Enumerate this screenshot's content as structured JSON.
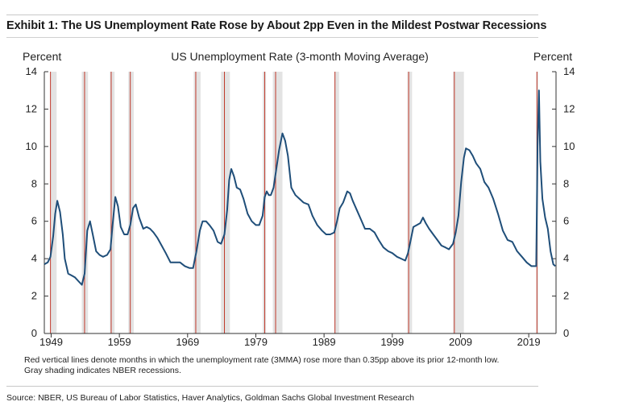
{
  "exhibit_title": "Exhibit 1: The US Unemployment Rate Rose by About 2pp Even in the Mildest Postwar Recessions",
  "source": "Source: NBER, US Bureau of Labor Statistics, Haver Analytics, Goldman Sachs Global Investment Research",
  "colors": {
    "line": "#1f4e79",
    "red_line": "#c0392b",
    "recession_shade": "#e3e3e3"
  },
  "chart_data": {
    "type": "line",
    "title": "US Unemployment Rate (3-month Moving Average)",
    "ylabel_left": "Percent",
    "ylabel_right": "Percent",
    "xlim": [
      1948.0,
      2023.0
    ],
    "ylim": [
      0,
      14
    ],
    "yticks": [
      "0",
      "2",
      "4",
      "6",
      "8",
      "10",
      "12",
      "14"
    ],
    "xticks": [
      {
        "x": 1949,
        "label": "1949"
      },
      {
        "x": 1959,
        "label": "1959"
      },
      {
        "x": 1969,
        "label": "1969"
      },
      {
        "x": 1979,
        "label": "1979"
      },
      {
        "x": 1989,
        "label": "1989"
      },
      {
        "x": 1999,
        "label": "1999"
      },
      {
        "x": 2009,
        "label": "2009"
      },
      {
        "x": 2019,
        "label": "2019"
      }
    ],
    "notes": [
      "Red vertical lines denote months in which the unemployment rate (3MMA) rose more than 0.35pp above its prior 12-month low.",
      "Gray shading indicates NBER recessions."
    ],
    "recessions": [
      [
        1948.9,
        1949.8
      ],
      [
        1953.5,
        1954.4
      ],
      [
        1957.6,
        1958.3
      ],
      [
        1960.3,
        1961.1
      ],
      [
        1969.9,
        1970.9
      ],
      [
        1973.9,
        1975.2
      ],
      [
        1980.0,
        1980.5
      ],
      [
        1981.5,
        1982.9
      ],
      [
        1990.5,
        1991.2
      ],
      [
        2001.2,
        2001.9
      ],
      [
        2007.9,
        2009.5
      ],
      [
        2020.1,
        2020.4
      ]
    ],
    "red_lines": [
      1948.9,
      1953.9,
      1957.8,
      1960.6,
      1970.2,
      1974.4,
      1980.3,
      1981.9,
      1990.6,
      2001.4,
      2008.1,
      2020.2
    ],
    "series": [
      {
        "x": [
          1948.0,
          1948.5,
          1948.9,
          1949.3,
          1949.6,
          1949.9,
          1950.3,
          1950.7,
          1951.0,
          1951.5,
          1952.0,
          1952.5,
          1953.0,
          1953.5,
          1953.9,
          1954.3,
          1954.7,
          1955.1,
          1955.6,
          1956.1,
          1956.6,
          1957.2,
          1957.7,
          1958.0,
          1958.4,
          1958.8,
          1959.2,
          1959.7,
          1960.2,
          1960.6,
          1961.0,
          1961.4,
          1961.9,
          1962.5,
          1963.0,
          1963.5,
          1964.0,
          1964.6,
          1965.2,
          1965.8,
          1966.5,
          1967.2,
          1967.9,
          1968.6,
          1969.3,
          1969.8,
          1970.3,
          1970.8,
          1971.2,
          1971.7,
          1972.2,
          1972.8,
          1973.4,
          1973.9,
          1974.4,
          1974.8,
          1975.1,
          1975.4,
          1975.8,
          1976.2,
          1976.7,
          1977.2,
          1977.8,
          1978.4,
          1979.0,
          1979.5,
          1980.0,
          1980.3,
          1980.6,
          1980.9,
          1981.2,
          1981.6,
          1982.0,
          1982.4,
          1982.9,
          1983.3,
          1983.7,
          1984.2,
          1984.8,
          1985.4,
          1986.0,
          1986.7,
          1987.3,
          1988.0,
          1988.7,
          1989.3,
          1989.9,
          1990.5,
          1990.9,
          1991.3,
          1991.8,
          1992.4,
          1992.8,
          1993.2,
          1993.8,
          1994.4,
          1995.0,
          1995.7,
          1996.4,
          1997.0,
          1997.7,
          1998.4,
          1999.0,
          1999.7,
          2000.3,
          2000.9,
          2001.3,
          2001.7,
          2002.1,
          2002.6,
          2003.1,
          2003.5,
          2003.9,
          2004.4,
          2005.0,
          2005.6,
          2006.2,
          2006.8,
          2007.3,
          2007.9,
          2008.3,
          2008.7,
          2009.1,
          2009.5,
          2009.8,
          2010.3,
          2010.8,
          2011.3,
          2011.9,
          2012.5,
          2013.1,
          2013.8,
          2014.5,
          2015.2,
          2015.9,
          2016.6,
          2017.3,
          2018.0,
          2018.7,
          2019.4,
          2019.9,
          2020.1,
          2020.3,
          2020.5,
          2020.7,
          2021.0,
          2021.4,
          2021.8,
          2022.2,
          2022.6,
          2022.9
        ],
        "values": [
          3.7,
          3.8,
          4.1,
          5.2,
          6.4,
          7.1,
          6.5,
          5.3,
          4.0,
          3.2,
          3.1,
          3.0,
          2.8,
          2.6,
          3.2,
          5.5,
          6.0,
          5.3,
          4.4,
          4.2,
          4.1,
          4.2,
          4.5,
          5.8,
          7.3,
          6.8,
          5.7,
          5.3,
          5.3,
          5.8,
          6.7,
          6.9,
          6.2,
          5.6,
          5.7,
          5.6,
          5.4,
          5.1,
          4.7,
          4.3,
          3.8,
          3.8,
          3.8,
          3.6,
          3.5,
          3.5,
          4.4,
          5.5,
          6.0,
          6.0,
          5.8,
          5.5,
          4.9,
          4.8,
          5.3,
          6.6,
          8.2,
          8.8,
          8.4,
          7.8,
          7.7,
          7.2,
          6.4,
          6.0,
          5.8,
          5.8,
          6.3,
          7.3,
          7.6,
          7.4,
          7.4,
          7.8,
          8.8,
          9.8,
          10.7,
          10.3,
          9.5,
          7.8,
          7.4,
          7.2,
          7.0,
          6.9,
          6.3,
          5.8,
          5.5,
          5.3,
          5.3,
          5.4,
          6.0,
          6.7,
          7.0,
          7.6,
          7.5,
          7.1,
          6.6,
          6.1,
          5.6,
          5.6,
          5.4,
          5.0,
          4.6,
          4.4,
          4.3,
          4.1,
          4.0,
          3.9,
          4.3,
          5.0,
          5.7,
          5.8,
          5.9,
          6.2,
          5.9,
          5.6,
          5.3,
          5.0,
          4.7,
          4.6,
          4.5,
          4.8,
          5.4,
          6.3,
          8.1,
          9.4,
          9.9,
          9.8,
          9.5,
          9.1,
          8.8,
          8.1,
          7.8,
          7.2,
          6.4,
          5.5,
          5.0,
          4.9,
          4.4,
          4.1,
          3.8,
          3.6,
          3.6,
          3.6,
          10.0,
          13.0,
          9.2,
          7.2,
          6.2,
          5.6,
          4.4,
          3.7,
          3.6
        ]
      }
    ]
  }
}
